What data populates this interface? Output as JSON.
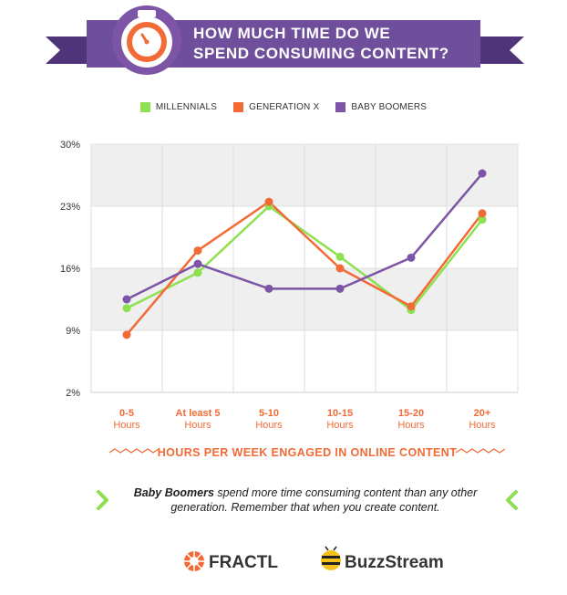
{
  "header": {
    "title_line1": "HOW MUCH TIME DO WE",
    "title_line2": "SPEND CONSUMING CONTENT?",
    "icon": "stopwatch-icon"
  },
  "colors": {
    "banner_purple": "#6f4e9c",
    "banner_dark": "#4f347a",
    "millennials": "#8ee050",
    "genx": "#f26a36",
    "boomers": "#7c55a6",
    "axis_label": "#f26a36"
  },
  "chart_data": {
    "type": "line",
    "categories": [
      [
        "0-5",
        "Hours"
      ],
      [
        "At least 5",
        "Hours"
      ],
      [
        "5-10",
        "Hours"
      ],
      [
        "10-15",
        "Hours"
      ],
      [
        "15-20",
        "Hours"
      ],
      [
        "20+",
        "Hours"
      ]
    ],
    "series": [
      {
        "name": "MILLENNIALS",
        "color": "#8ee050",
        "values": [
          11.5,
          15.5,
          23.0,
          17.3,
          11.3,
          21.5
        ]
      },
      {
        "name": "GENERATION X",
        "color": "#f26a36",
        "values": [
          8.5,
          18.0,
          23.5,
          16.0,
          11.7,
          22.2
        ]
      },
      {
        "name": "BABY BOOMERS",
        "color": "#7c55a6",
        "values": [
          12.5,
          16.5,
          13.7,
          13.7,
          17.2,
          26.7
        ]
      }
    ],
    "yticks": [
      "30%",
      "23%",
      "16%",
      "9%",
      "2%"
    ],
    "ytick_values": [
      30,
      23,
      16,
      9,
      2
    ],
    "ylim": [
      2,
      30
    ],
    "xlabel": "HOURS PER WEEK ENGAGED IN ONLINE CONTENT",
    "ylabel": "",
    "grid": "banded",
    "legend": "top-center"
  },
  "note": {
    "bold": "Baby Boomers",
    "rest_line1": " spend more time consuming content than any other",
    "line2": "generation. Remember that when you create content."
  },
  "footer": {
    "logo1": "FRACTL",
    "logo2": "BuzzStream"
  }
}
